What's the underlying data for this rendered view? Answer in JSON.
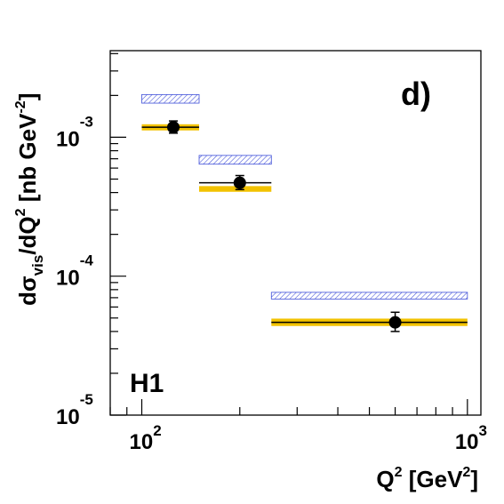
{
  "chart_data": {
    "type": "scatter",
    "panel_label": "d)",
    "experiment_label": "H1",
    "xlabel": {
      "base": "Q",
      "sup": "2",
      "unit_open": " [GeV",
      "unit_sup": "2",
      "unit_close": "]"
    },
    "ylabel": {
      "base": "dσ",
      "sub": "vis",
      "mid": "/dQ",
      "sup": "2",
      "unit_open": " [nb GeV",
      "unit_sup": "-2",
      "unit_close": "]"
    },
    "x_scale": "log",
    "y_scale": "log",
    "xlim": [
      80,
      1100
    ],
    "ylim": [
      1e-05,
      0.0042
    ],
    "x_tick_labels": [
      {
        "value": 100,
        "base": "10",
        "exp": "2"
      },
      {
        "value": 1000,
        "base": "10",
        "exp": "3"
      }
    ],
    "y_tick_labels": [
      {
        "value": 1e-05,
        "base": "10",
        "exp": "-5"
      },
      {
        "value": 0.0001,
        "base": "10",
        "exp": "-4"
      },
      {
        "value": 0.001,
        "base": "10",
        "exp": "-3"
      }
    ],
    "series": [
      {
        "marker": "filled-circle",
        "points": [
          {
            "x": 125,
            "y": 0.00118,
            "y_low": 0.00107,
            "y_high": 0.00131,
            "x_low": 100,
            "x_high": 150
          },
          {
            "x": 200,
            "y": 0.00047,
            "y_low": 0.00042,
            "y_high": 0.00053,
            "x_low": 150,
            "x_high": 250
          },
          {
            "x": 600,
            "y": 4.65e-05,
            "y_low": 4e-05,
            "y_high": 5.5e-05,
            "x_low": 250,
            "x_high": 1000
          }
        ]
      },
      {
        "style": "yellow-band",
        "color": "#f2c200",
        "bins": [
          {
            "x_low": 100,
            "x_high": 150,
            "y_low": 0.00112,
            "y_high": 0.00124
          },
          {
            "x_low": 150,
            "x_high": 250,
            "y_low": 0.000405,
            "y_high": 0.000445
          },
          {
            "x_low": 250,
            "x_high": 1000,
            "y_low": 4.38e-05,
            "y_high": 4.95e-05
          }
        ]
      },
      {
        "style": "hatched-band",
        "color": "#3f4fd8",
        "bins": [
          {
            "x_low": 100,
            "x_high": 150,
            "y_low": 0.00176,
            "y_high": 0.00203
          },
          {
            "x_low": 150,
            "x_high": 250,
            "y_low": 0.00064,
            "y_high": 0.00074
          },
          {
            "x_low": 250,
            "x_high": 1000,
            "y_low": 6.85e-05,
            "y_high": 7.65e-05
          }
        ]
      }
    ],
    "grid": false
  }
}
